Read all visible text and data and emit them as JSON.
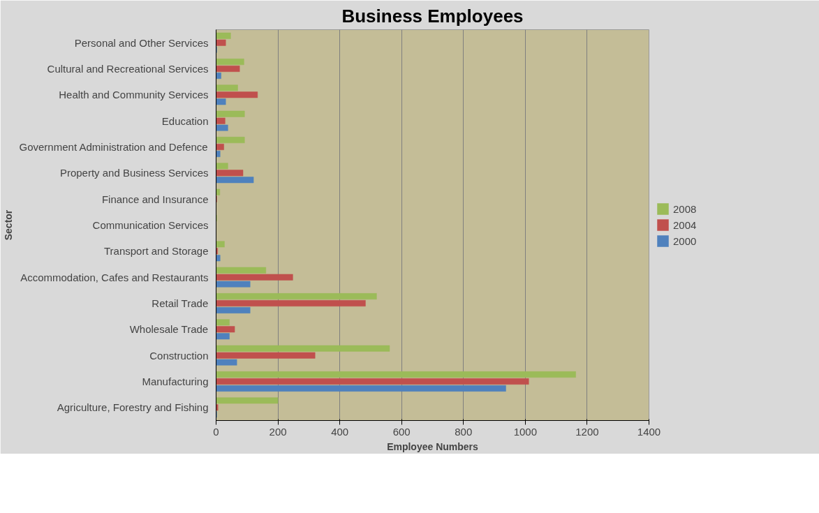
{
  "chart_data": {
    "type": "bar",
    "orientation": "horizontal",
    "title": "Business Employees",
    "xlabel": "Employee Numbers",
    "ylabel": "Sector",
    "categories": [
      "Personal and Other Services",
      "Cultural and Recreational Services",
      "Health and Community Services",
      "Education",
      "Government Administration and Defence",
      "Property and Business Services",
      "Finance and Insurance",
      "Communication Services",
      "Transport and Storage",
      "Accommodation, Cafes and Restaurants",
      "Retail Trade",
      "Wholesale Trade",
      "Construction",
      "Manufacturing",
      "Agriculture, Forestry and Fishing"
    ],
    "series": [
      {
        "name": "2008",
        "color": "#9bbb59",
        "values": [
          47,
          90,
          70,
          92,
          92,
          38,
          12,
          2,
          27,
          161,
          519,
          43,
          561,
          1163,
          200
        ]
      },
      {
        "name": "2004",
        "color": "#c0504d",
        "values": [
          31,
          76,
          134,
          29,
          25,
          87,
          2,
          null,
          5,
          248,
          483,
          60,
          320,
          1011,
          6
        ]
      },
      {
        "name": "2000",
        "color": "#4f81bd",
        "values": [
          2,
          16,
          31,
          38,
          13,
          121,
          null,
          0,
          13,
          110,
          110,
          43,
          67,
          937,
          2
        ]
      }
    ],
    "xlim": [
      0,
      1400
    ],
    "xticks": [
      0,
      200,
      400,
      600,
      800,
      1000,
      1200,
      1400
    ],
    "grid": "x",
    "legend": "right"
  }
}
